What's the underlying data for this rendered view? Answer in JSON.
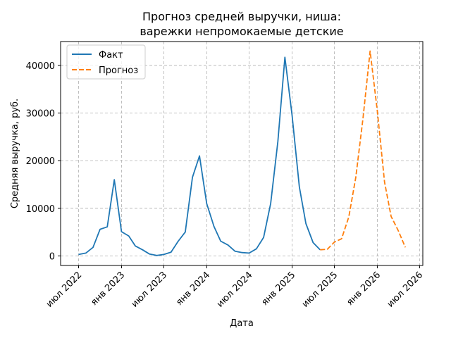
{
  "chart_data": {
    "type": "line",
    "title_line1": "Прогноз средней выручки, ниша:",
    "title_line2": "варежки непромокаемые детские",
    "xlabel": "Дата",
    "ylabel": "Средняя выручка, руб.",
    "ylim": [
      -2000,
      45000
    ],
    "xlim": [
      "2022-04-15",
      "2026-07-15"
    ],
    "x_ticks": [
      {
        "date": "2022-07-01",
        "label": "июл 2022"
      },
      {
        "date": "2023-01-01",
        "label": "янв 2023"
      },
      {
        "date": "2023-07-01",
        "label": "июл 2023"
      },
      {
        "date": "2024-01-01",
        "label": "янв 2024"
      },
      {
        "date": "2024-07-01",
        "label": "июл 2024"
      },
      {
        "date": "2025-01-01",
        "label": "янв 2025"
      },
      {
        "date": "2025-07-01",
        "label": "июл 2025"
      },
      {
        "date": "2026-01-01",
        "label": "янв 2026"
      },
      {
        "date": "2026-07-01",
        "label": "июл 2026"
      }
    ],
    "y_ticks": [
      0,
      10000,
      20000,
      30000,
      40000
    ],
    "grid": true,
    "legend_position": "top-left",
    "series": [
      {
        "name": "Факт",
        "color": "#1f77b4",
        "style": "solid",
        "points": [
          [
            "2022-07-01",
            300
          ],
          [
            "2022-08-01",
            600
          ],
          [
            "2022-09-01",
            1800
          ],
          [
            "2022-10-01",
            5600
          ],
          [
            "2022-11-01",
            6100
          ],
          [
            "2022-12-01",
            16000
          ],
          [
            "2023-01-01",
            5100
          ],
          [
            "2023-02-01",
            4200
          ],
          [
            "2023-03-01",
            2100
          ],
          [
            "2023-04-01",
            1300
          ],
          [
            "2023-05-01",
            400
          ],
          [
            "2023-06-01",
            100
          ],
          [
            "2023-07-01",
            300
          ],
          [
            "2023-08-01",
            800
          ],
          [
            "2023-09-01",
            3100
          ],
          [
            "2023-10-01",
            5000
          ],
          [
            "2023-11-01",
            16500
          ],
          [
            "2023-12-01",
            21000
          ],
          [
            "2024-01-01",
            11000
          ],
          [
            "2024-02-01",
            6200
          ],
          [
            "2024-03-01",
            3100
          ],
          [
            "2024-04-01",
            2300
          ],
          [
            "2024-05-01",
            1000
          ],
          [
            "2024-06-01",
            700
          ],
          [
            "2024-07-01",
            600
          ],
          [
            "2024-08-01",
            1500
          ],
          [
            "2024-09-01",
            3900
          ],
          [
            "2024-10-01",
            11000
          ],
          [
            "2024-11-01",
            24000
          ],
          [
            "2024-12-01",
            41700
          ],
          [
            "2025-01-01",
            29500
          ],
          [
            "2025-02-01",
            14500
          ],
          [
            "2025-03-01",
            6800
          ],
          [
            "2025-04-01",
            2800
          ],
          [
            "2025-05-01",
            1300
          ]
        ]
      },
      {
        "name": "Прогноз",
        "color": "#ff7f0e",
        "style": "dashed",
        "points": [
          [
            "2025-05-01",
            1300
          ],
          [
            "2025-06-01",
            1400
          ],
          [
            "2025-07-01",
            2900
          ],
          [
            "2025-08-01",
            3600
          ],
          [
            "2025-09-01",
            8200
          ],
          [
            "2025-10-01",
            16500
          ],
          [
            "2025-11-01",
            29000
          ],
          [
            "2025-12-01",
            43000
          ],
          [
            "2026-01-01",
            30500
          ],
          [
            "2026-02-01",
            15500
          ],
          [
            "2026-03-01",
            8300
          ],
          [
            "2026-04-01",
            5300
          ],
          [
            "2026-05-01",
            1800
          ]
        ]
      }
    ]
  }
}
